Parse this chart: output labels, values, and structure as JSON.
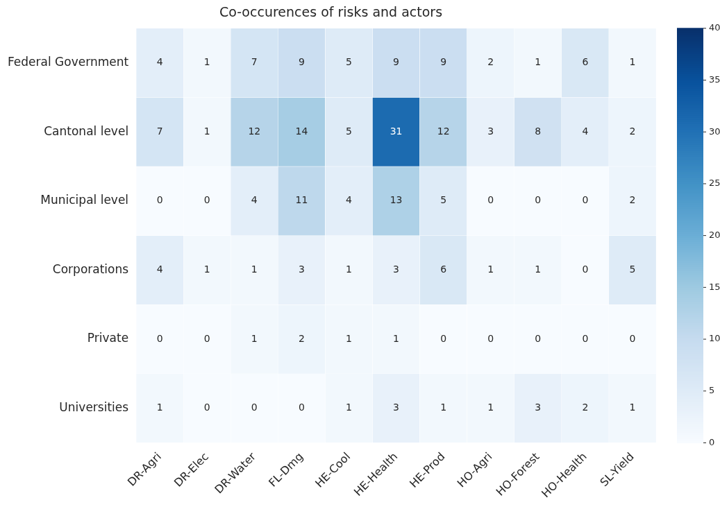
{
  "chart_data": {
    "type": "heatmap",
    "title": "Co-occurences of risks and actors",
    "categories": [
      "DR-Agri",
      "DR-Elec",
      "DR-Water",
      "FL-Dmg",
      "HE-Cool",
      "HE-Health",
      "HE-Prod",
      "HO-Agri",
      "HO-Forest",
      "HO-Health",
      "SL-Yield"
    ],
    "y_categories": [
      "Federal Government",
      "Cantonal level",
      "Municipal level",
      "Corporations",
      "Private",
      "Universities"
    ],
    "cells": [
      [
        4,
        1,
        7,
        9,
        5,
        9,
        9,
        2,
        1,
        6,
        1
      ],
      [
        7,
        1,
        12,
        14,
        5,
        31,
        12,
        3,
        8,
        4,
        2
      ],
      [
        0,
        0,
        4,
        11,
        4,
        13,
        5,
        0,
        0,
        0,
        2
      ],
      [
        4,
        1,
        1,
        3,
        1,
        3,
        6,
        1,
        1,
        0,
        5
      ],
      [
        0,
        0,
        1,
        2,
        1,
        1,
        0,
        0,
        0,
        0,
        0
      ],
      [
        1,
        0,
        0,
        0,
        1,
        3,
        1,
        1,
        3,
        2,
        1
      ]
    ],
    "clim": [
      0,
      40
    ],
    "cticks": [
      0,
      5,
      10,
      15,
      20,
      25,
      30,
      35,
      40
    ],
    "data_labels": true
  }
}
